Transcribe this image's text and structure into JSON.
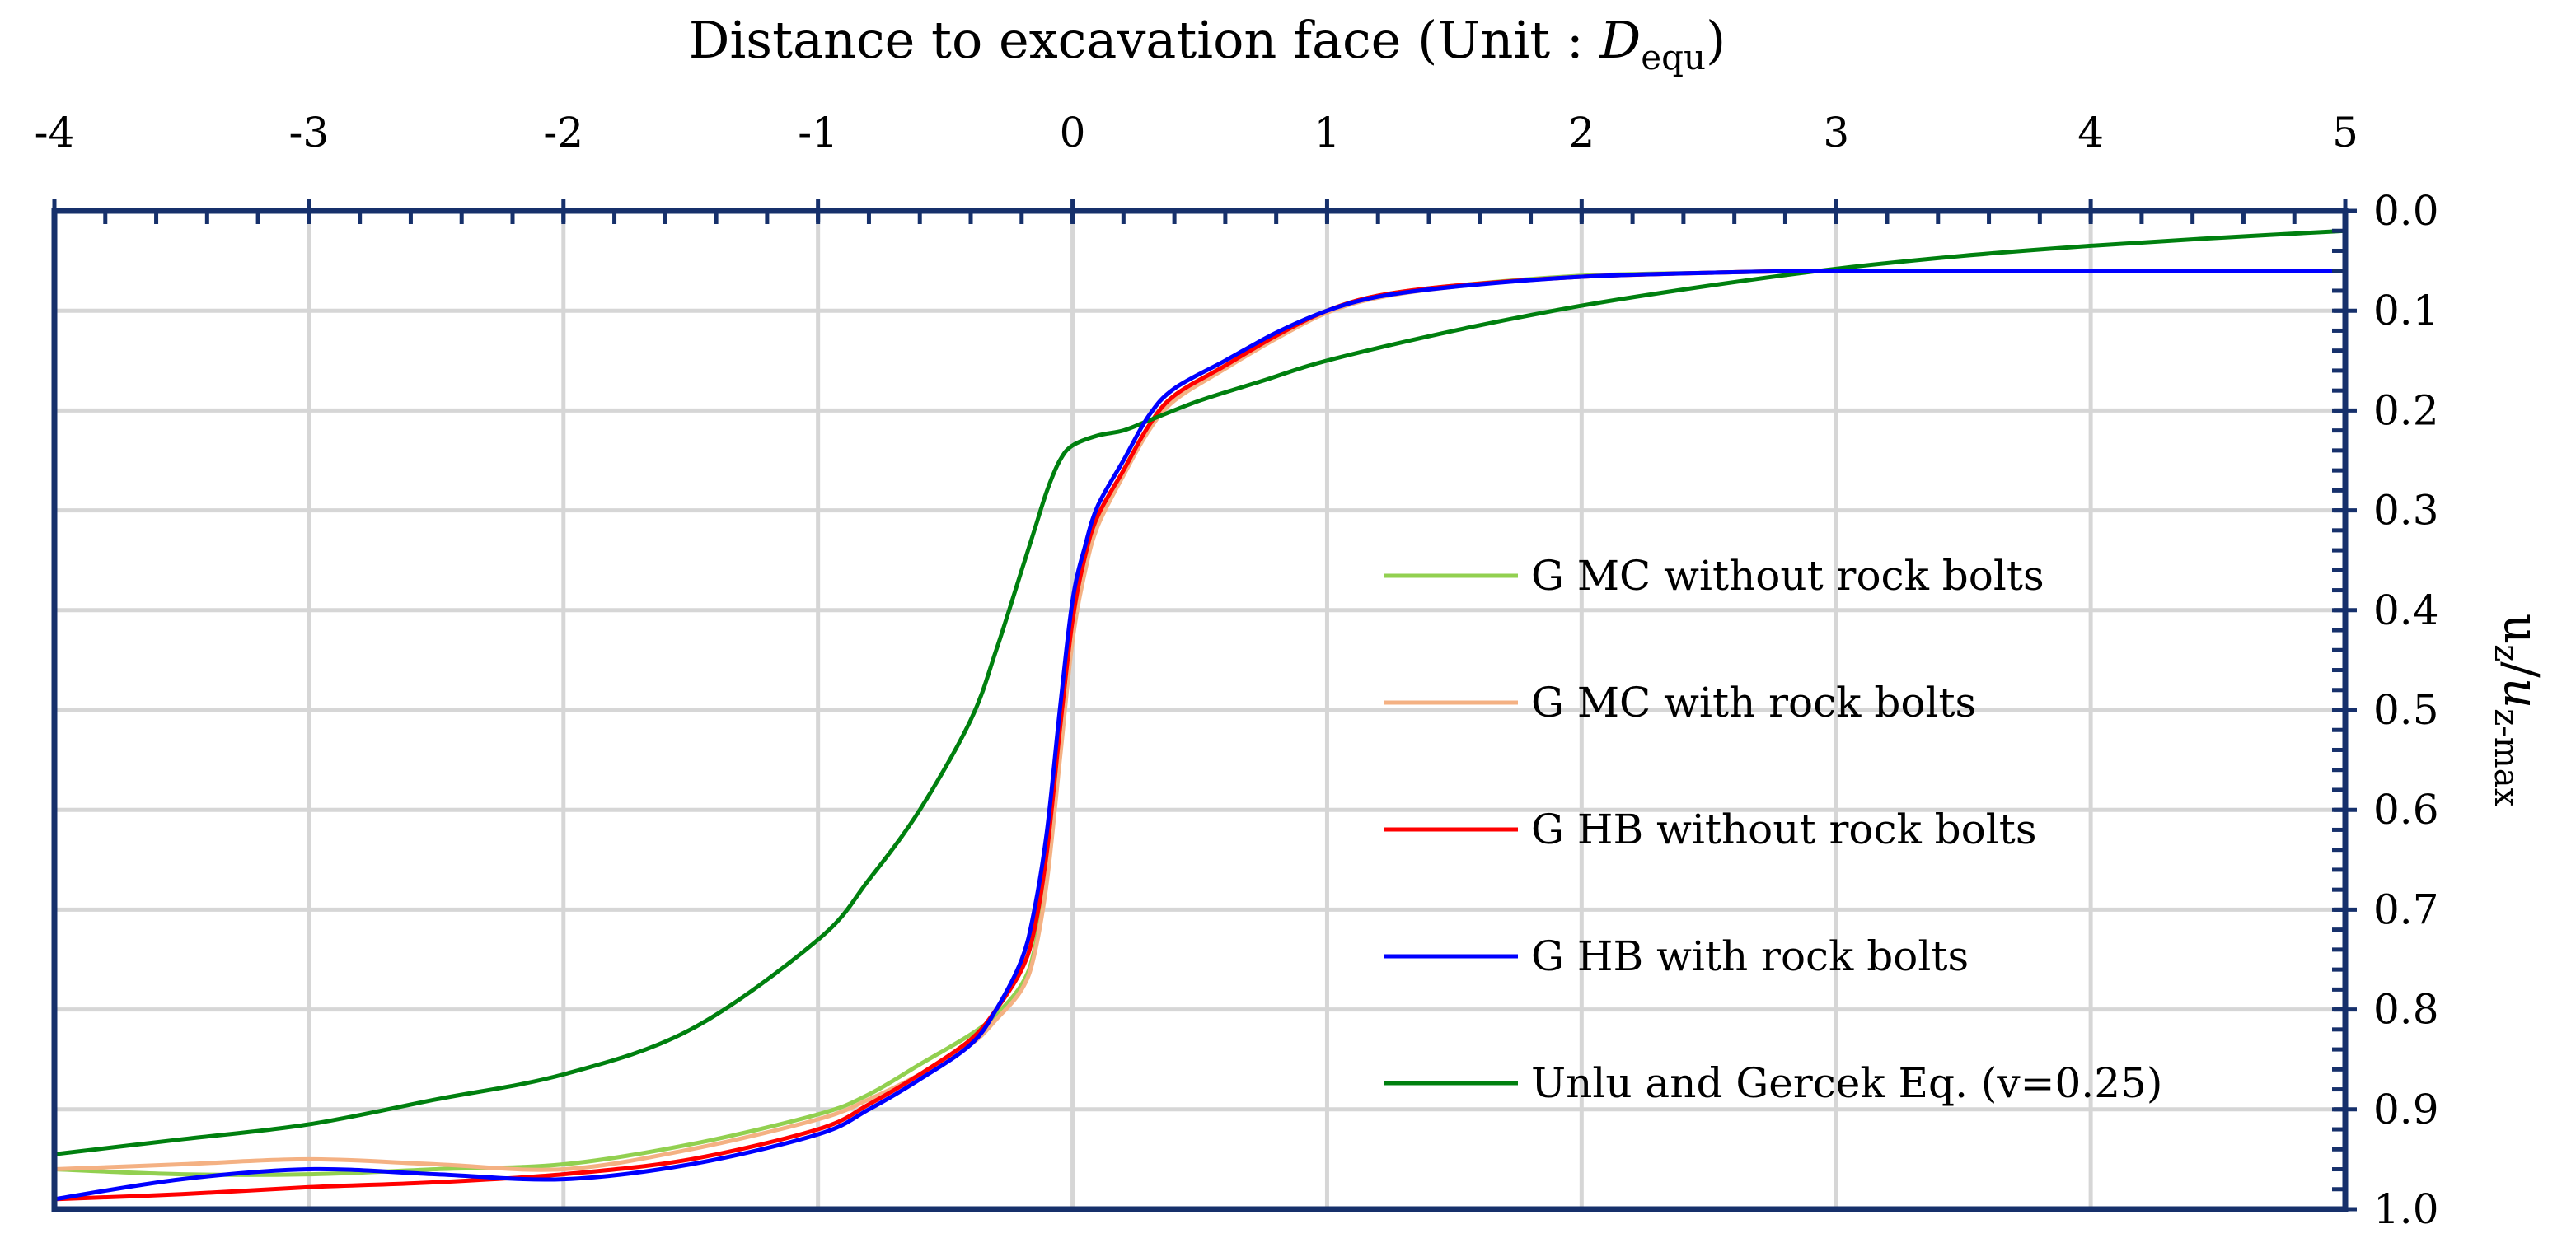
{
  "chart_data": {
    "type": "line",
    "title": "",
    "xlabel": {
      "main": "Distance to excavation face (Unit : ",
      "var": "D",
      "sub": "equ",
      "close": ")"
    },
    "ylabel": {
      "main": "u",
      "sub1": "z",
      "slash": "/",
      "var": "u",
      "sub2": "z-max"
    },
    "xlim": [
      -4,
      5
    ],
    "ylim": [
      0.0,
      1.0
    ],
    "y_inverted": true,
    "x_axis_position": "top",
    "y_axis_position": "right",
    "grid": true,
    "legend_position": "bottom-right",
    "x_ticks": [
      "-4",
      "-3",
      "-2",
      "-1",
      "0",
      "1",
      "2",
      "3",
      "4",
      "5"
    ],
    "y_ticks": [
      "0.0",
      "0.1",
      "0.2",
      "0.3",
      "0.4",
      "0.5",
      "0.6",
      "0.7",
      "0.8",
      "0.9",
      "1.0"
    ],
    "series": [
      {
        "name": "G MC without rock bolts",
        "color": "#92d050",
        "x": [
          -4.0,
          -3.5,
          -3.0,
          -2.5,
          -2.0,
          -1.5,
          -1.0,
          -0.8,
          -0.6,
          -0.4,
          -0.3,
          -0.2,
          -0.15,
          -0.1,
          -0.05,
          0.0,
          0.05,
          0.1,
          0.2,
          0.3,
          0.4,
          0.6,
          0.8,
          1.0,
          1.2,
          1.5,
          2.0,
          2.5,
          3.0,
          4.0,
          5.0
        ],
        "y": [
          0.96,
          0.965,
          0.965,
          0.96,
          0.955,
          0.935,
          0.905,
          0.885,
          0.855,
          0.825,
          0.805,
          0.775,
          0.74,
          0.66,
          0.54,
          0.42,
          0.355,
          0.31,
          0.26,
          0.215,
          0.185,
          0.155,
          0.125,
          0.1,
          0.085,
          0.075,
          0.065,
          0.062,
          0.06,
          0.06,
          0.06
        ]
      },
      {
        "name": "G MC with rock bolts",
        "color": "#f4b183",
        "x": [
          -4.0,
          -3.5,
          -3.0,
          -2.5,
          -2.0,
          -1.5,
          -1.0,
          -0.8,
          -0.6,
          -0.4,
          -0.3,
          -0.2,
          -0.15,
          -0.1,
          -0.05,
          0.0,
          0.05,
          0.1,
          0.2,
          0.3,
          0.4,
          0.6,
          0.8,
          1.0,
          1.2,
          1.5,
          2.0,
          2.5,
          3.0,
          4.0,
          5.0
        ],
        "y": [
          0.96,
          0.955,
          0.95,
          0.955,
          0.96,
          0.94,
          0.91,
          0.89,
          0.865,
          0.835,
          0.81,
          0.78,
          0.745,
          0.67,
          0.55,
          0.43,
          0.36,
          0.315,
          0.265,
          0.22,
          0.19,
          0.158,
          0.128,
          0.102,
          0.087,
          0.076,
          0.066,
          0.062,
          0.06,
          0.06,
          0.06
        ]
      },
      {
        "name": "G HB without rock bolts",
        "color": "#ff0000",
        "x": [
          -4.0,
          -3.5,
          -3.0,
          -2.5,
          -2.0,
          -1.5,
          -1.0,
          -0.8,
          -0.6,
          -0.4,
          -0.3,
          -0.2,
          -0.15,
          -0.1,
          -0.05,
          0.0,
          0.05,
          0.1,
          0.2,
          0.3,
          0.4,
          0.6,
          0.8,
          1.0,
          1.2,
          1.5,
          2.0,
          2.5,
          3.0,
          4.0,
          5.0
        ],
        "y": [
          0.99,
          0.985,
          0.978,
          0.973,
          0.965,
          0.95,
          0.92,
          0.895,
          0.865,
          0.83,
          0.8,
          0.76,
          0.72,
          0.64,
          0.52,
          0.41,
          0.345,
          0.305,
          0.26,
          0.215,
          0.185,
          0.155,
          0.125,
          0.1,
          0.085,
          0.075,
          0.066,
          0.062,
          0.06,
          0.06,
          0.06
        ]
      },
      {
        "name": "G HB with rock bolts",
        "color": "#0000ff",
        "x": [
          -4.0,
          -3.5,
          -3.0,
          -2.5,
          -2.0,
          -1.5,
          -1.0,
          -0.8,
          -0.6,
          -0.4,
          -0.3,
          -0.2,
          -0.15,
          -0.1,
          -0.05,
          0.0,
          0.05,
          0.1,
          0.2,
          0.3,
          0.4,
          0.6,
          0.8,
          1.0,
          1.2,
          1.5,
          2.0,
          2.5,
          3.0,
          4.0,
          5.0
        ],
        "y": [
          0.99,
          0.97,
          0.96,
          0.965,
          0.97,
          0.955,
          0.925,
          0.9,
          0.87,
          0.835,
          0.8,
          0.75,
          0.7,
          0.62,
          0.5,
          0.39,
          0.335,
          0.295,
          0.25,
          0.205,
          0.178,
          0.15,
          0.122,
          0.1,
          0.086,
          0.076,
          0.066,
          0.062,
          0.06,
          0.06,
          0.06
        ]
      },
      {
        "name": "Unlu and Gercek Eq. (v=0.25)",
        "color": "#00800f",
        "x": [
          -4.0,
          -3.5,
          -3.0,
          -2.5,
          -2.0,
          -1.5,
          -1.0,
          -0.8,
          -0.6,
          -0.4,
          -0.3,
          -0.2,
          -0.15,
          -0.1,
          -0.05,
          0.0,
          0.1,
          0.2,
          0.3,
          0.5,
          0.75,
          1.0,
          1.5,
          2.0,
          2.5,
          3.0,
          3.5,
          4.0,
          4.5,
          5.0
        ],
        "y": [
          0.945,
          0.93,
          0.915,
          0.89,
          0.865,
          0.82,
          0.73,
          0.67,
          0.6,
          0.51,
          0.44,
          0.36,
          0.32,
          0.28,
          0.25,
          0.235,
          0.225,
          0.22,
          0.21,
          0.19,
          0.17,
          0.15,
          0.12,
          0.095,
          0.075,
          0.058,
          0.045,
          0.035,
          0.027,
          0.02
        ]
      }
    ]
  }
}
